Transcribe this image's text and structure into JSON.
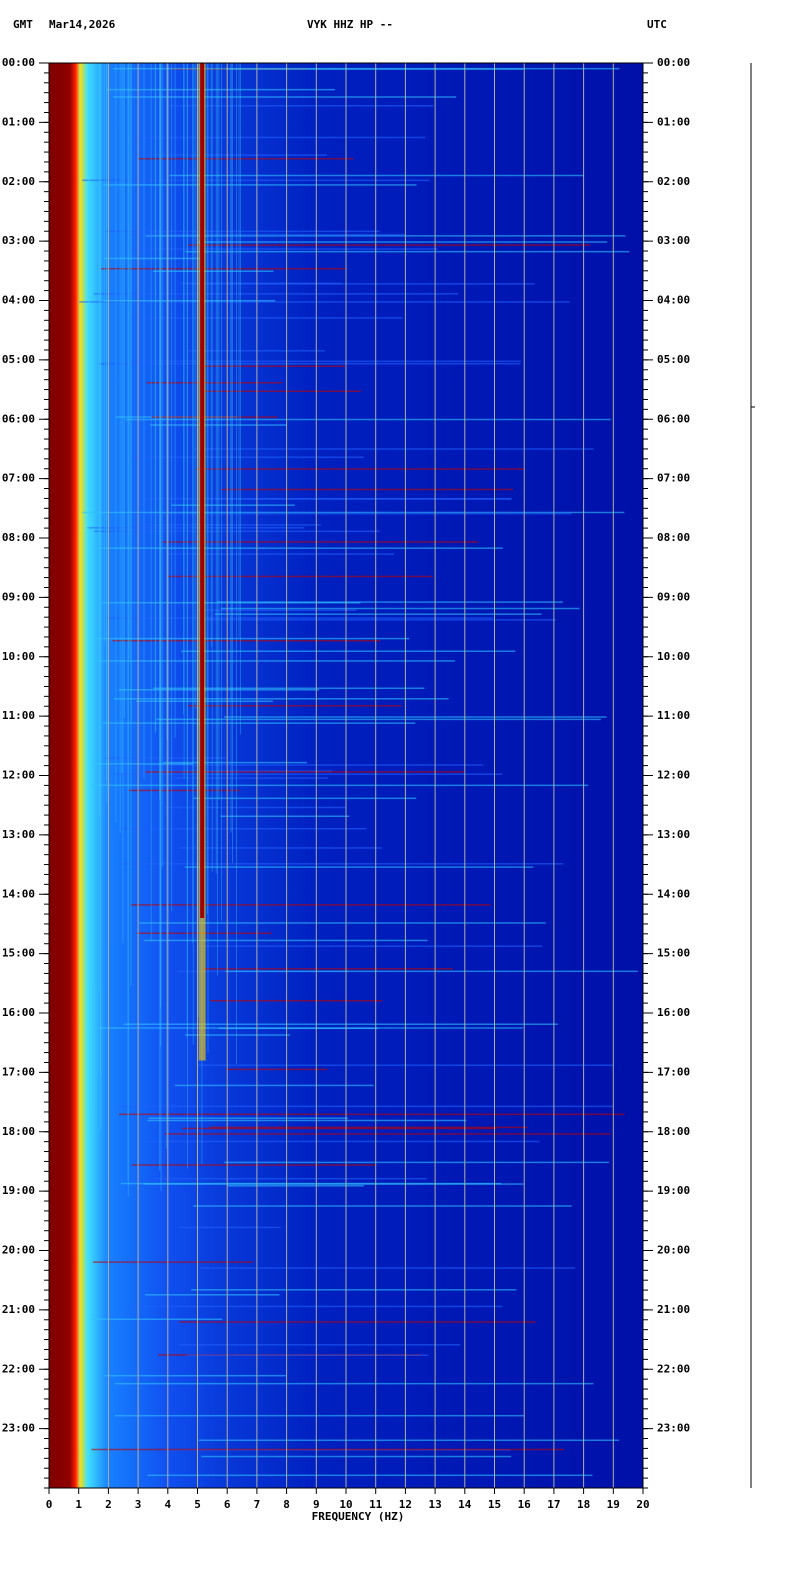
{
  "chart_data": {
    "type": "spectrogram",
    "header": {
      "left_zone": "GMT",
      "date": "Mar14,2026",
      "title": "VYK HHZ HP --",
      "right_zone": "UTC"
    },
    "xlabel": "FREQUENCY (HZ)",
    "xlim": [
      0,
      20
    ],
    "xticks": [
      0,
      1,
      2,
      3,
      4,
      5,
      6,
      7,
      8,
      9,
      10,
      11,
      12,
      13,
      14,
      15,
      16,
      17,
      18,
      19,
      20
    ],
    "ylim": [
      0,
      24
    ],
    "yticks": [
      {
        "value": 0,
        "label": "00:00"
      },
      {
        "value": 1,
        "label": "01:00"
      },
      {
        "value": 2,
        "label": "02:00"
      },
      {
        "value": 3,
        "label": "03:00"
      },
      {
        "value": 4,
        "label": "04:00"
      },
      {
        "value": 5,
        "label": "05:00"
      },
      {
        "value": 6,
        "label": "06:00"
      },
      {
        "value": 7,
        "label": "07:00"
      },
      {
        "value": 8,
        "label": "08:00"
      },
      {
        "value": 9,
        "label": "09:00"
      },
      {
        "value": 10,
        "label": "10:00"
      },
      {
        "value": 11,
        "label": "11:00"
      },
      {
        "value": 12,
        "label": "12:00"
      },
      {
        "value": 13,
        "label": "13:00"
      },
      {
        "value": 14,
        "label": "14:00"
      },
      {
        "value": 15,
        "label": "15:00"
      },
      {
        "value": 16,
        "label": "16:00"
      },
      {
        "value": 17,
        "label": "17:00"
      },
      {
        "value": 18,
        "label": "18:00"
      },
      {
        "value": 19,
        "label": "19:00"
      },
      {
        "value": 20,
        "label": "20:00"
      },
      {
        "value": 21,
        "label": "21:00"
      },
      {
        "value": 22,
        "label": "22:00"
      },
      {
        "value": 23,
        "label": "23:00"
      }
    ],
    "grid": true
  }
}
